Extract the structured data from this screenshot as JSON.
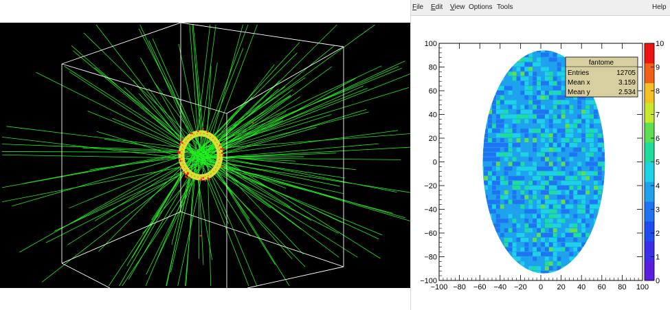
{
  "menu": {
    "file": {
      "first": "F",
      "rest": "ile"
    },
    "edit": {
      "first": "E",
      "rest": "dit"
    },
    "view": {
      "first": "V",
      "rest": "iew"
    },
    "options": "Options",
    "tools": "Tools",
    "help": "Help"
  },
  "stats": {
    "title": "fantome",
    "rows": [
      {
        "label": "Entries",
        "value": "12705"
      },
      {
        "label": "Mean x",
        "value": "3.159"
      },
      {
        "label": "Mean y",
        "value": "2.534"
      }
    ]
  },
  "colors": {
    "tracks": "#22ee22",
    "hits": "#ee2222",
    "detector_ring": "#dddd33",
    "frame": "#ffffff",
    "stats_box": "#d8cfa0"
  },
  "chart_data": {
    "type": "heatmap",
    "xlim": [
      -100,
      100
    ],
    "ylim": [
      -100,
      100
    ],
    "x_ticks": [
      "−100",
      "−80",
      "−60",
      "−40",
      "−20",
      "0",
      "20",
      "40",
      "60",
      "80",
      "100"
    ],
    "y_ticks": [
      "100",
      "80",
      "60",
      "40",
      "20",
      "0",
      "−20",
      "−40",
      "−60",
      "−80",
      "−100"
    ],
    "palette": {
      "range": [
        0,
        10
      ],
      "ticks": [
        "10",
        "9",
        "8",
        "7",
        "6",
        "5",
        "4",
        "3",
        "2",
        "1",
        "0"
      ],
      "colors": [
        "#5a1ee0",
        "#3a2ee8",
        "#1e4cf0",
        "#1e74f2",
        "#1ea2ee",
        "#1ed2e6",
        "#1edc9e",
        "#5ce052",
        "#c8e82a",
        "#f4c024",
        "#f06018",
        "#ee1414"
      ]
    },
    "histogram": {
      "name": "fantome",
      "entries": 12705,
      "mean_x": 3.159,
      "mean_y": 2.534,
      "shape": "ellipse",
      "center": [
        3,
        0
      ],
      "semi_axes": [
        60,
        94
      ]
    }
  }
}
